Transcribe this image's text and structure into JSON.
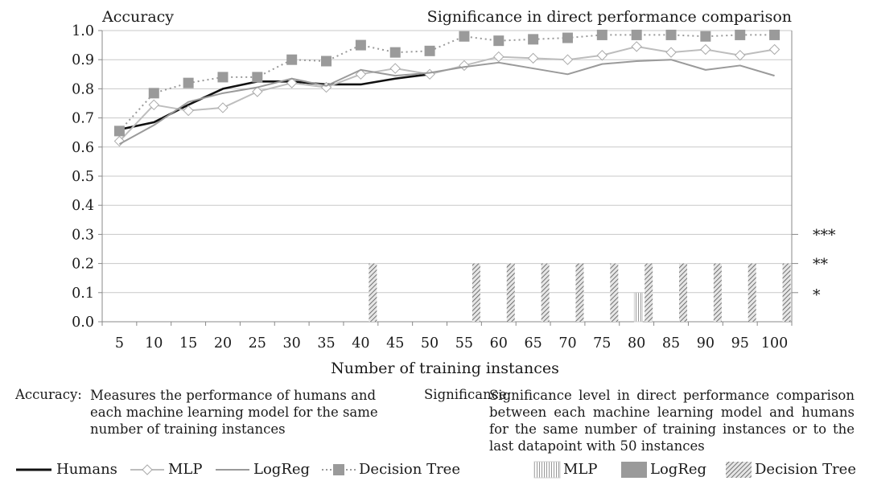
{
  "chart_data": {
    "type": "line",
    "title_left": "Accuracy",
    "title_right": "Significance in direct performance comparison",
    "xlabel": "Number of training instances",
    "categories": [
      5,
      10,
      15,
      20,
      25,
      30,
      35,
      40,
      45,
      50,
      55,
      60,
      65,
      70,
      75,
      80,
      85,
      90,
      95,
      100
    ],
    "y_ticks": [
      "0.0",
      "0.1",
      "0.2",
      "0.3",
      "0.4",
      "0.5",
      "0.6",
      "0.7",
      "0.8",
      "0.9",
      "1.0"
    ],
    "ylim": [
      0,
      1
    ],
    "gridlines": true,
    "series": [
      {
        "name": "Humans",
        "color": "#111111",
        "style": "solid",
        "values": [
          0.66,
          0.685,
          0.745,
          0.8,
          0.825,
          0.825,
          0.815,
          0.815,
          0.835,
          0.85,
          null,
          null,
          null,
          null,
          null,
          null,
          null,
          null,
          null,
          null
        ]
      },
      {
        "name": "MLP",
        "color": "#bdbdbd",
        "style": "solid-diamond",
        "values": [
          0.62,
          0.745,
          0.725,
          0.735,
          0.79,
          0.82,
          0.805,
          0.85,
          0.87,
          0.85,
          0.88,
          0.91,
          0.905,
          0.9,
          0.915,
          0.945,
          0.925,
          0.935,
          0.915,
          0.935
        ]
      },
      {
        "name": "LogReg",
        "color": "#9a9a9a",
        "style": "solid",
        "values": [
          0.61,
          0.675,
          0.755,
          0.785,
          0.805,
          0.835,
          0.81,
          0.865,
          0.845,
          0.855,
          0.875,
          0.89,
          0.87,
          0.85,
          0.885,
          0.895,
          0.9,
          0.865,
          0.88,
          0.845
        ]
      },
      {
        "name": "Decision Tree",
        "color": "#9a9a9a",
        "style": "dotted-square",
        "values": [
          0.655,
          0.785,
          0.82,
          0.84,
          0.84,
          0.9,
          0.895,
          0.95,
          0.925,
          0.93,
          0.98,
          0.965,
          0.97,
          0.975,
          0.985,
          0.985,
          0.985,
          0.98,
          0.985,
          0.985
        ]
      }
    ],
    "significance_bars": [
      {
        "model": "MLP",
        "x": 80,
        "level": 0.1
      },
      {
        "model": "Decision Tree",
        "x": 40,
        "level": 0.2
      },
      {
        "model": "Decision Tree",
        "x": 55,
        "level": 0.2
      },
      {
        "model": "Decision Tree",
        "x": 60,
        "level": 0.2
      },
      {
        "model": "Decision Tree",
        "x": 65,
        "level": 0.2
      },
      {
        "model": "Decision Tree",
        "x": 70,
        "level": 0.2
      },
      {
        "model": "Decision Tree",
        "x": 75,
        "level": 0.2
      },
      {
        "model": "Decision Tree",
        "x": 80,
        "level": 0.2
      },
      {
        "model": "Decision Tree",
        "x": 85,
        "level": 0.2
      },
      {
        "model": "Decision Tree",
        "x": 90,
        "level": 0.2
      },
      {
        "model": "Decision Tree",
        "x": 95,
        "level": 0.2
      },
      {
        "model": "Decision Tree",
        "x": 100,
        "level": 0.2
      }
    ],
    "significance_levels": [
      {
        "label": "***",
        "y": 0.3
      },
      {
        "label": "**",
        "y": 0.2
      },
      {
        "label": "*",
        "y": 0.1
      }
    ]
  },
  "notes": {
    "accuracy_term": "Accuracy:",
    "accuracy_desc": "Measures the performance of humans and each machine learning model for the same number of training instances",
    "significance_term": "Significance:",
    "significance_desc": "Significance level in direct performance comparison between each machine learning model and humans for the same number of training instances or to the last datapoint with 50 instances"
  },
  "legend": {
    "lines": [
      "Humans",
      "MLP",
      "LogReg",
      "Decision Tree"
    ],
    "bars": [
      "MLP",
      "LogReg",
      "Decision Tree"
    ]
  }
}
